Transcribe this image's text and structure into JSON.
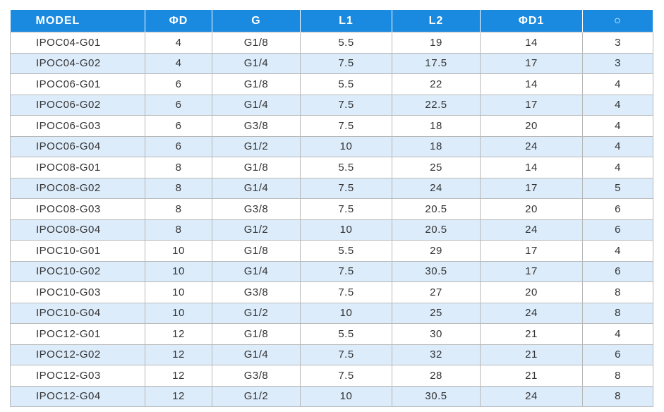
{
  "table": {
    "header": [
      "MODEL",
      "ΦD",
      "G",
      "L1",
      "L2",
      "ΦD1",
      "○"
    ],
    "rows": [
      [
        "IPOC04-G01",
        "4",
        "G1/8",
        "5.5",
        "19",
        "14",
        "3"
      ],
      [
        "IPOC04-G02",
        "4",
        "G1/4",
        "7.5",
        "17.5",
        "17",
        "3"
      ],
      [
        "IPOC06-G01",
        "6",
        "G1/8",
        "5.5",
        "22",
        "14",
        "4"
      ],
      [
        "IPOC06-G02",
        "6",
        "G1/4",
        "7.5",
        "22.5",
        "17",
        "4"
      ],
      [
        "IPOC06-G03",
        "6",
        "G3/8",
        "7.5",
        "18",
        "20",
        "4"
      ],
      [
        "IPOC06-G04",
        "6",
        "G1/2",
        "10",
        "18",
        "24",
        "4"
      ],
      [
        "IPOC08-G01",
        "8",
        "G1/8",
        "5.5",
        "25",
        "14",
        "4"
      ],
      [
        "IPOC08-G02",
        "8",
        "G1/4",
        "7.5",
        "24",
        "17",
        "5"
      ],
      [
        "IPOC08-G03",
        "8",
        "G3/8",
        "7.5",
        "20.5",
        "20",
        "6"
      ],
      [
        "IPOC08-G04",
        "8",
        "G1/2",
        "10",
        "20.5",
        "24",
        "6"
      ],
      [
        "IPOC10-G01",
        "10",
        "G1/8",
        "5.5",
        "29",
        "17",
        "4"
      ],
      [
        "IPOC10-G02",
        "10",
        "G1/4",
        "7.5",
        "30.5",
        "17",
        "6"
      ],
      [
        "IPOC10-G03",
        "10",
        "G3/8",
        "7.5",
        "27",
        "20",
        "8"
      ],
      [
        "IPOC10-G04",
        "10",
        "G1/2",
        "10",
        "25",
        "24",
        "8"
      ],
      [
        "IPOC12-G01",
        "12",
        "G1/8",
        "5.5",
        "30",
        "21",
        "4"
      ],
      [
        "IPOC12-G02",
        "12",
        "G1/4",
        "7.5",
        "32",
        "21",
        "6"
      ],
      [
        "IPOC12-G03",
        "12",
        "G3/8",
        "7.5",
        "28",
        "21",
        "8"
      ],
      [
        "IPOC12-G04",
        "12",
        "G1/2",
        "10",
        "30.5",
        "24",
        "8"
      ]
    ]
  }
}
